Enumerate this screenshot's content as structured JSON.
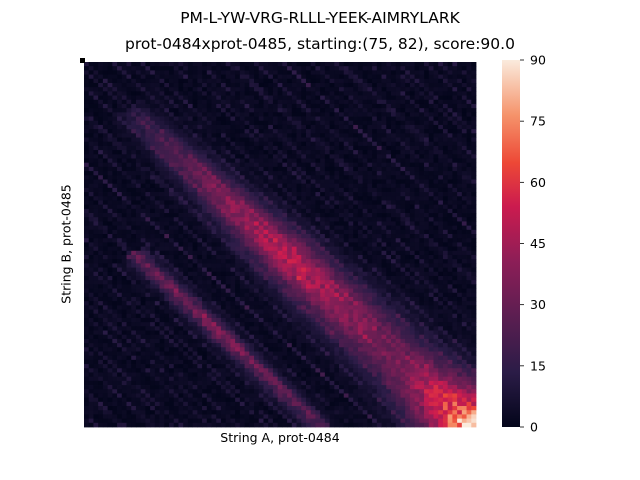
{
  "chart_data": {
    "type": "heatmap",
    "title": "PM-L-YW-VRG-RLLL-YEEK-AIMRYLARK",
    "subtitle": "prot-0484xprot-0485, starting:(75, 82), score:90.0",
    "xlabel": "String A, prot-0484",
    "ylabel": "String B, prot-0485",
    "n_cols": 83,
    "n_rows": 87,
    "colorbar": {
      "min": 0,
      "max": 90,
      "ticks": [
        0,
        15,
        30,
        45,
        60,
        75,
        90
      ],
      "colormap": "rocket"
    },
    "grid": false,
    "features": [
      {
        "from": [
          10,
          12
        ],
        "to": [
          82,
          87
        ],
        "peak": 90,
        "note": "main diagonal band, brightest at bottom-right"
      },
      {
        "from": [
          10,
          45
        ],
        "to": [
          50,
          87
        ],
        "peak": 35,
        "note": "secondary lower diagonal"
      }
    ],
    "start_marker": [
      0,
      0
    ]
  }
}
